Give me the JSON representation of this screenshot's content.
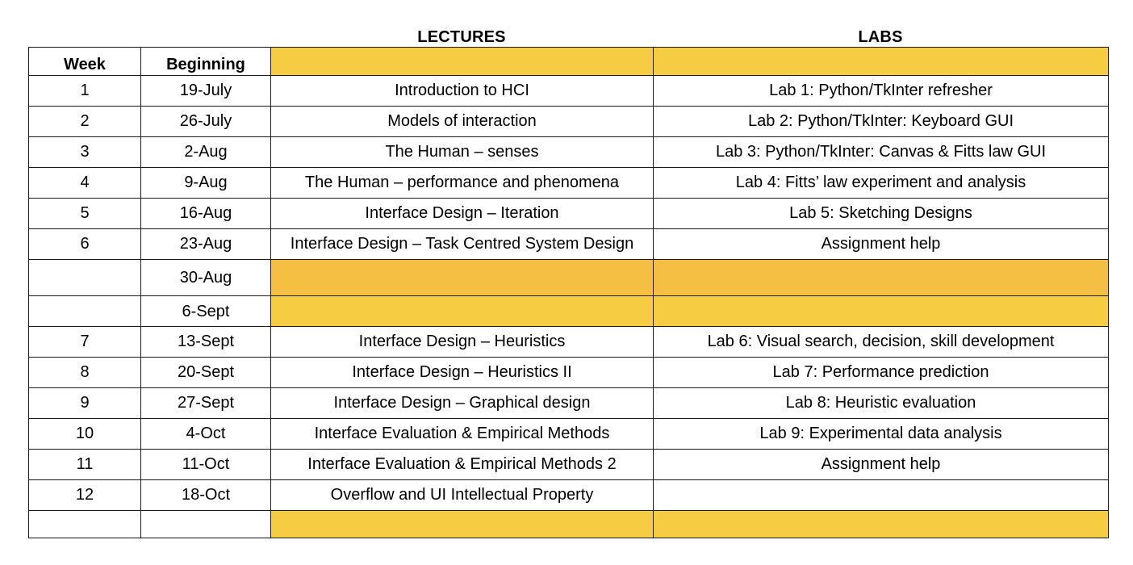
{
  "headers": {
    "lectures": "LECTURES",
    "labs": "LABS",
    "week": "Week",
    "beginning": "Beginning"
  },
  "colors": {
    "highlight": "#f6cc42",
    "highlight_dark": "#f4bf42",
    "border": "#1a1a1a"
  },
  "rows": [
    {
      "week": "1",
      "beginning": "19-July",
      "lecture": "Introduction to HCI",
      "lab": "Lab 1: Python/TkInter refresher"
    },
    {
      "week": "2",
      "beginning": "26-July",
      "lecture": "Models  of interaction",
      "lab": "Lab 2: Python/TkInter: Keyboard GUI"
    },
    {
      "week": "3",
      "beginning": "2-Aug",
      "lecture": "The Human – senses",
      "lab": "Lab 3: Python/TkInter: Canvas & Fitts law GUI"
    },
    {
      "week": "4",
      "beginning": "9-Aug",
      "lecture": "The Human – performance and phenomena",
      "lab": "Lab 4: Fitts’ law experiment and analysis"
    },
    {
      "week": "5",
      "beginning": "16-Aug",
      "lecture": "Interface Design – Iteration",
      "lab": "Lab 5: Sketching Designs"
    },
    {
      "week": "6",
      "beginning": "23-Aug",
      "lecture": "Interface Design –  Task Centred System Design",
      "lab": "Assignment help"
    },
    {
      "week": "",
      "beginning": "30-Aug",
      "lecture": "",
      "lab": ""
    },
    {
      "week": "",
      "beginning": "6-Sept",
      "lecture": "",
      "lab": ""
    },
    {
      "week": "7",
      "beginning": "13-Sept",
      "lecture": "Interface Design –  Heuristics",
      "lab": "Lab 6: Visual search, decision, skill development"
    },
    {
      "week": "8",
      "beginning": "20-Sept",
      "lecture": "Interface Design –  Heuristics II",
      "lab": "Lab 7: Performance prediction"
    },
    {
      "week": "9",
      "beginning": "27-Sept",
      "lecture": "Interface Design – Graphical design",
      "lab": "Lab 8: Heuristic evaluation"
    },
    {
      "week": "10",
      "beginning": "4-Oct",
      "lecture": "Interface Evaluation & Empirical Methods",
      "lab": "Lab 9:  Experimental data analysis"
    },
    {
      "week": "11",
      "beginning": "11-Oct",
      "lecture": "Interface Evaluation & Empirical Methods 2",
      "lab": "Assignment help"
    },
    {
      "week": "12",
      "beginning": "18-Oct",
      "lecture": "Overflow and UI Intellectual Property",
      "lab": ""
    },
    {
      "week": "",
      "beginning": "",
      "lecture": "",
      "lab": ""
    }
  ]
}
